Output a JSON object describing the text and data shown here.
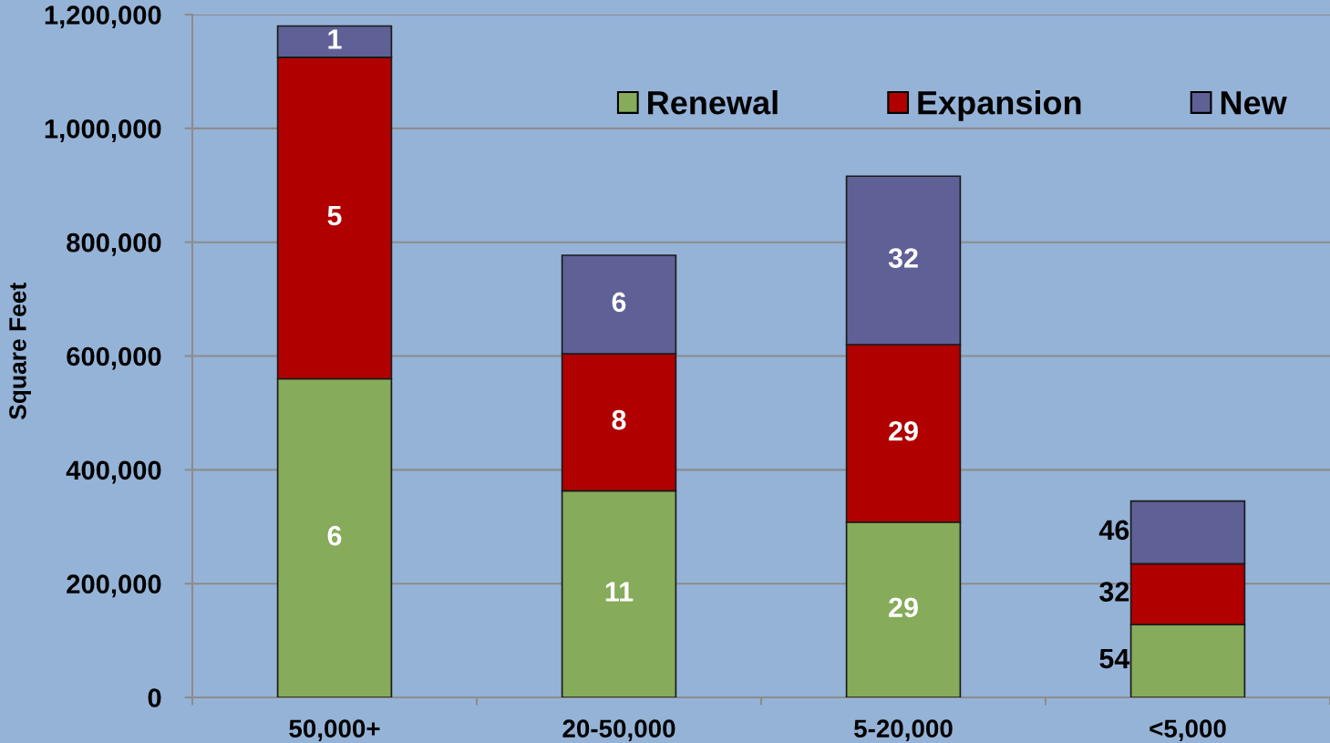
{
  "chart_data": {
    "type": "bar",
    "stacked": true,
    "ylabel": "Square Feet",
    "categories": [
      "50,000+",
      "20-50,000",
      "5-20,000",
      "<5,000"
    ],
    "series": [
      {
        "name": "Renewal",
        "color": "#86ab5a",
        "values": [
          560000,
          363000,
          308000,
          128000
        ]
      },
      {
        "name": "Expansion",
        "color": "#b00000",
        "values": [
          565000,
          241000,
          312000,
          107000
        ]
      },
      {
        "name": "New",
        "color": "#5f6096",
        "values": [
          55000,
          173000,
          296000,
          110000
        ]
      }
    ],
    "annotations": [
      "6",
      "5",
      "1",
      "11",
      "8",
      "6",
      "29",
      "29",
      "32",
      "54",
      "32",
      "46"
    ],
    "ylim": [
      0,
      1200000
    ],
    "yticks": [
      {
        "value": 0,
        "label": "0"
      },
      {
        "value": 200000,
        "label": "200,000"
      },
      {
        "value": 400000,
        "label": "400,000"
      },
      {
        "value": 600000,
        "label": "600,000"
      },
      {
        "value": 800000,
        "label": "800,000"
      },
      {
        "value": 1000000,
        "label": "1,000,000"
      },
      {
        "value": 1200000,
        "label": "1,200,000"
      }
    ],
    "grid": "y",
    "legend": "top right"
  }
}
